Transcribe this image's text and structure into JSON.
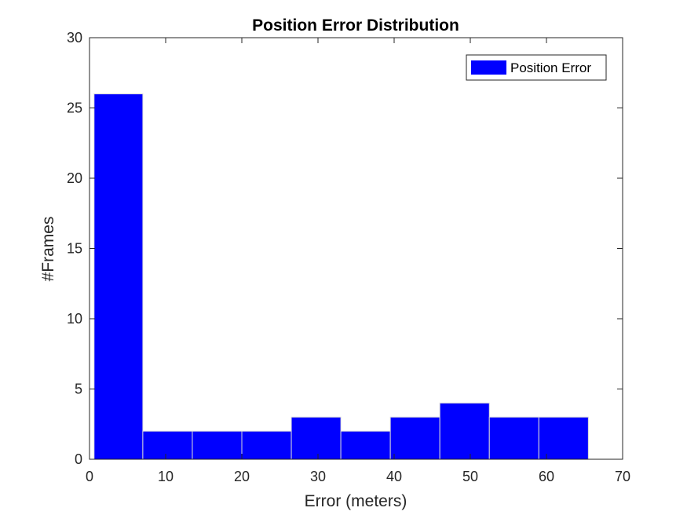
{
  "chart_data": {
    "type": "bar",
    "subtype": "histogram",
    "title": "Position Error Distribution",
    "xlabel": "Error (meters)",
    "ylabel": "#Frames",
    "xlim": [
      0,
      70
    ],
    "ylim": [
      0,
      30
    ],
    "xticks": [
      0,
      10,
      20,
      30,
      40,
      50,
      60,
      70
    ],
    "yticks": [
      0,
      5,
      10,
      15,
      20,
      25,
      30
    ],
    "bin_edges": [
      0.6,
      7.0,
      13.5,
      20.0,
      26.5,
      33.0,
      39.5,
      46.0,
      52.5,
      59.0,
      65.5
    ],
    "values": [
      26,
      2,
      2,
      2,
      3,
      2,
      3,
      4,
      3,
      3
    ],
    "series": [
      {
        "name": "Position Error",
        "color": "#0000ff"
      }
    ],
    "legend_position": "top-right",
    "grid": false
  }
}
